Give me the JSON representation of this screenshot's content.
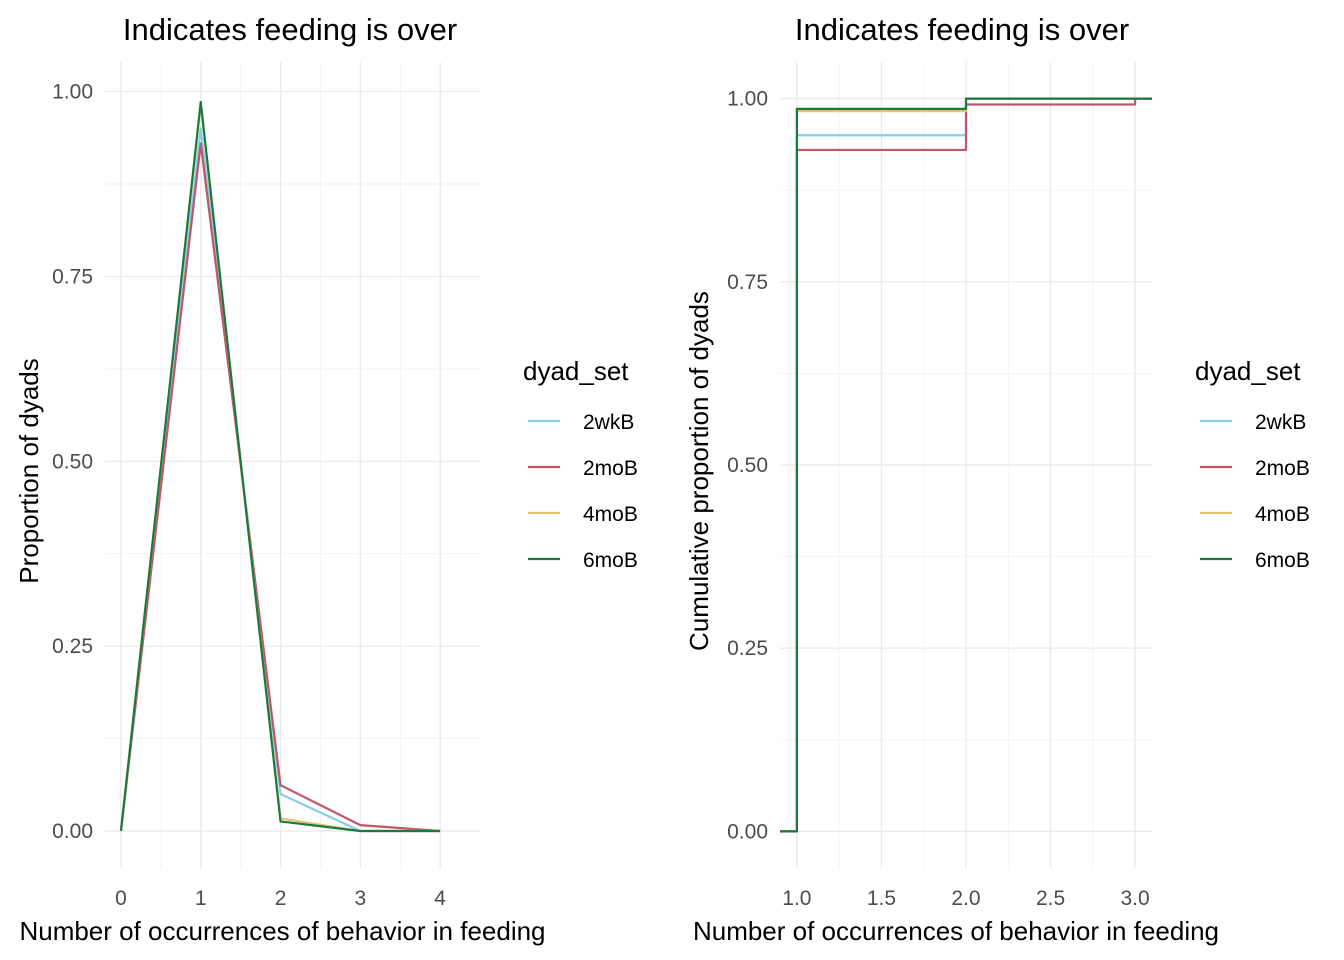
{
  "chart_data": [
    {
      "type": "line",
      "title": "Indicates feeding is over",
      "xlabel": "Number of occurrences of behavior in feeding",
      "ylabel": "Proportion of dyads",
      "xlim": [
        -0.2,
        4.5
      ],
      "ylim": [
        -0.05,
        1.04
      ],
      "x_ticks": [
        0,
        1,
        2,
        3,
        4
      ],
      "x_tick_labels": [
        "0",
        "1",
        "2",
        "3",
        "4"
      ],
      "y_ticks": [
        0,
        0.25,
        0.5,
        0.75,
        1
      ],
      "y_tick_labels": [
        "0.00",
        "0.25",
        "0.50",
        "0.75",
        "1.00"
      ],
      "grid": true,
      "legend": {
        "title": "dyad_set",
        "position": "right"
      },
      "series": [
        {
          "name": "2wkB",
          "color": "#87CEEB",
          "x": [
            0,
            1,
            2,
            3,
            4
          ],
          "y": [
            0,
            0.95,
            0.05,
            0.0,
            0.0
          ]
        },
        {
          "name": "2moB",
          "color": "#C0566B",
          "x": [
            0,
            1,
            2,
            3,
            4
          ],
          "y": [
            0,
            0.93,
            0.062,
            0.008,
            0.0
          ]
        },
        {
          "name": "4moB",
          "color": "#E6C46E",
          "x": [
            0,
            1,
            2,
            3,
            4
          ],
          "y": [
            0,
            0.983,
            0.017,
            0.0,
            0.0
          ]
        },
        {
          "name": "6moB",
          "color": "#1A7A3E",
          "x": [
            0,
            1,
            2,
            3,
            4
          ],
          "y": [
            0,
            0.986,
            0.013,
            0.0,
            0.0
          ]
        }
      ]
    },
    {
      "type": "line",
      "title": "Indicates feeding is over",
      "xlabel": "Number of occurrences of behavior in feeding",
      "ylabel": "Cumulative proportion of dyads",
      "xlim": [
        0.9,
        3.1
      ],
      "ylim": [
        -0.05,
        1.05
      ],
      "x_ticks": [
        1,
        1.5,
        2,
        2.5,
        3
      ],
      "x_tick_labels": [
        "1.0",
        "1.5",
        "2.0",
        "2.5",
        "3.0"
      ],
      "y_ticks": [
        0,
        0.25,
        0.5,
        0.75,
        1
      ],
      "y_tick_labels": [
        "0.00",
        "0.25",
        "0.50",
        "0.75",
        "1.00"
      ],
      "grid": true,
      "step": true,
      "legend": {
        "title": "dyad_set",
        "position": "right"
      },
      "series": [
        {
          "name": "2wkB",
          "color": "#87CEEB",
          "x": [
            1,
            2,
            3
          ],
          "y": [
            0.95,
            1.0,
            1.0
          ]
        },
        {
          "name": "2moB",
          "color": "#C0566B",
          "x": [
            1,
            2,
            3
          ],
          "y": [
            0.93,
            0.992,
            1.0
          ]
        },
        {
          "name": "4moB",
          "color": "#E6C46E",
          "x": [
            1,
            2,
            3
          ],
          "y": [
            0.983,
            1.0,
            1.0
          ]
        },
        {
          "name": "6moB",
          "color": "#1A7A3E",
          "x": [
            1,
            2,
            3
          ],
          "y": [
            0.986,
            1.0,
            1.0
          ]
        }
      ]
    }
  ]
}
